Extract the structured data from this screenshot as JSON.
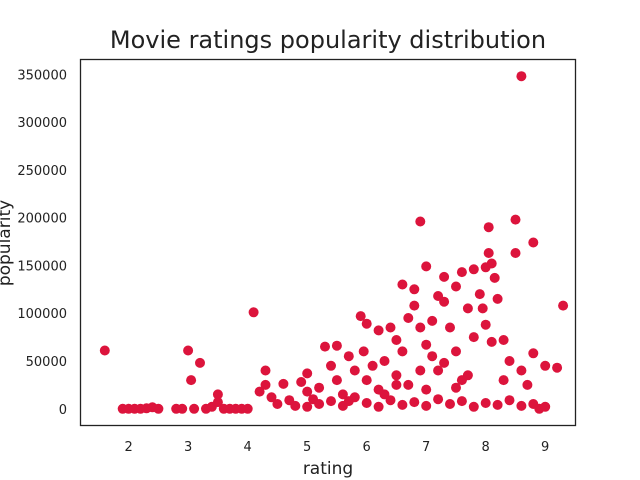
{
  "chart_data": {
    "type": "scatter",
    "title": "Movie ratings popularity distribution",
    "xlabel": "rating",
    "ylabel": "popularity",
    "xlim": [
      1.2,
      9.5
    ],
    "ylim": [
      -17000,
      365000
    ],
    "xticks": [
      2,
      3,
      4,
      5,
      6,
      7,
      8,
      9
    ],
    "yticks": [
      0,
      50000,
      100000,
      150000,
      200000,
      250000,
      300000,
      350000
    ],
    "grid": false,
    "legend": "none",
    "marker_color": "#dc143c",
    "series": [
      {
        "points": [
          [
            1.6,
            61000
          ],
          [
            1.9,
            0
          ],
          [
            2.0,
            0
          ],
          [
            2.1,
            0
          ],
          [
            2.2,
            0
          ],
          [
            2.3,
            500
          ],
          [
            2.4,
            1500
          ],
          [
            2.5,
            0
          ],
          [
            2.8,
            0
          ],
          [
            2.9,
            0
          ],
          [
            3.0,
            61000
          ],
          [
            3.05,
            30000
          ],
          [
            3.2,
            48000
          ],
          [
            3.1,
            0
          ],
          [
            3.3,
            0
          ],
          [
            3.4,
            2000
          ],
          [
            3.5,
            15000
          ],
          [
            3.5,
            7000
          ],
          [
            3.6,
            0
          ],
          [
            3.7,
            0
          ],
          [
            3.8,
            0
          ],
          [
            3.9,
            0
          ],
          [
            4.0,
            0
          ],
          [
            4.1,
            101000
          ],
          [
            4.2,
            18000
          ],
          [
            4.3,
            40000
          ],
          [
            4.3,
            25000
          ],
          [
            4.4,
            12000
          ],
          [
            4.5,
            5000
          ],
          [
            4.6,
            26000
          ],
          [
            4.7,
            9000
          ],
          [
            4.8,
            3000
          ],
          [
            4.9,
            28000
          ],
          [
            5.0,
            37000
          ],
          [
            5.0,
            18000
          ],
          [
            5.1,
            10000
          ],
          [
            5.2,
            22000
          ],
          [
            5.3,
            65000
          ],
          [
            5.4,
            45000
          ],
          [
            5.5,
            66000
          ],
          [
            5.5,
            30000
          ],
          [
            5.6,
            15000
          ],
          [
            5.7,
            55000
          ],
          [
            5.8,
            40000
          ],
          [
            5.9,
            97000
          ],
          [
            5.95,
            60000
          ],
          [
            6.0,
            89000
          ],
          [
            6.0,
            30000
          ],
          [
            6.1,
            45000
          ],
          [
            6.2,
            82000
          ],
          [
            6.2,
            20000
          ],
          [
            6.3,
            50000
          ],
          [
            6.4,
            85000
          ],
          [
            6.5,
            72000
          ],
          [
            6.5,
            35000
          ],
          [
            6.6,
            130000
          ],
          [
            6.6,
            60000
          ],
          [
            6.7,
            95000
          ],
          [
            6.7,
            25000
          ],
          [
            6.8,
            125000
          ],
          [
            6.8,
            108000
          ],
          [
            6.9,
            85000
          ],
          [
            6.9,
            196000
          ],
          [
            7.0,
            149000
          ],
          [
            7.0,
            67000
          ],
          [
            7.0,
            20000
          ],
          [
            7.1,
            92000
          ],
          [
            7.2,
            118000
          ],
          [
            7.2,
            40000
          ],
          [
            7.3,
            138000
          ],
          [
            7.3,
            112000
          ],
          [
            7.4,
            85000
          ],
          [
            7.5,
            128000
          ],
          [
            7.5,
            60000
          ],
          [
            7.6,
            143000
          ],
          [
            7.6,
            30000
          ],
          [
            7.7,
            105000
          ],
          [
            7.8,
            146000
          ],
          [
            7.8,
            75000
          ],
          [
            7.9,
            120000
          ],
          [
            7.95,
            105000
          ],
          [
            8.0,
            148000
          ],
          [
            8.0,
            88000
          ],
          [
            8.05,
            190000
          ],
          [
            8.05,
            163000
          ],
          [
            8.1,
            152000
          ],
          [
            8.1,
            70000
          ],
          [
            8.15,
            137000
          ],
          [
            8.2,
            115000
          ],
          [
            8.3,
            72000
          ],
          [
            8.4,
            50000
          ],
          [
            8.5,
            198000
          ],
          [
            8.5,
            163000
          ],
          [
            8.6,
            348000
          ],
          [
            8.6,
            40000
          ],
          [
            8.7,
            25000
          ],
          [
            8.8,
            174000
          ],
          [
            8.8,
            58000
          ],
          [
            8.9,
            0
          ],
          [
            9.0,
            45000
          ],
          [
            9.2,
            43000
          ],
          [
            9.3,
            108000
          ],
          [
            5.0,
            2000
          ],
          [
            5.2,
            5000
          ],
          [
            5.4,
            8000
          ],
          [
            5.6,
            3000
          ],
          [
            5.8,
            12000
          ],
          [
            6.0,
            6000
          ],
          [
            6.2,
            2000
          ],
          [
            6.4,
            9000
          ],
          [
            6.6,
            4000
          ],
          [
            6.8,
            7000
          ],
          [
            7.0,
            3000
          ],
          [
            7.2,
            10000
          ],
          [
            7.4,
            5000
          ],
          [
            7.6,
            8000
          ],
          [
            7.8,
            2000
          ],
          [
            8.0,
            6000
          ],
          [
            8.2,
            4000
          ],
          [
            8.4,
            9000
          ],
          [
            8.6,
            3000
          ],
          [
            8.8,
            5000
          ],
          [
            9.0,
            2000
          ],
          [
            7.1,
            55000
          ],
          [
            7.3,
            48000
          ],
          [
            6.5,
            25000
          ],
          [
            6.9,
            40000
          ],
          [
            7.7,
            35000
          ],
          [
            8.3,
            30000
          ],
          [
            6.3,
            15000
          ],
          [
            5.7,
            8000
          ],
          [
            7.5,
            22000
          ]
        ]
      }
    ]
  }
}
